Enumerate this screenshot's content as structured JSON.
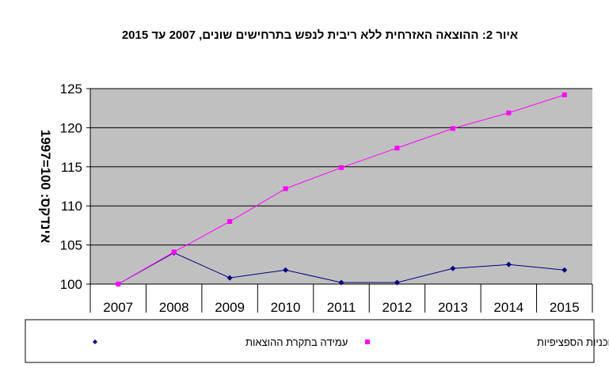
{
  "chart_data": {
    "type": "line",
    "title": "איור 2: ההוצאה האזרחית ללא ריבית לנפש בתרחישים שונים, 2007 עד 2015",
    "ylabel": "אינדקס: 100=1997",
    "xlabel": "",
    "categories": [
      "2007",
      "2008",
      "2009",
      "2010",
      "2011",
      "2012",
      "2013",
      "2014",
      "2015"
    ],
    "ylim": [
      100,
      125
    ],
    "yticks": [
      "100",
      "105",
      "110",
      "115",
      "120",
      "125"
    ],
    "grid": true,
    "legend_position": "bottom",
    "series": [
      {
        "name": "עמידה בתקרת ההוצאות",
        "color": "#000080",
        "marker": "diamond",
        "values": [
          100,
          104,
          100.8,
          101.8,
          100.2,
          100.2,
          102,
          102.5,
          101.8
        ]
      },
      {
        "name": "ההוצאות על פי התוכניות הספציפיות",
        "color": "#ff00ff",
        "marker": "square",
        "values": [
          100,
          104.1,
          108,
          112.2,
          114.9,
          117.4,
          119.9,
          121.9,
          124.2
        ]
      }
    ],
    "colors": {
      "plot_background": "#c0c0c0",
      "gridline": "#000000"
    }
  }
}
